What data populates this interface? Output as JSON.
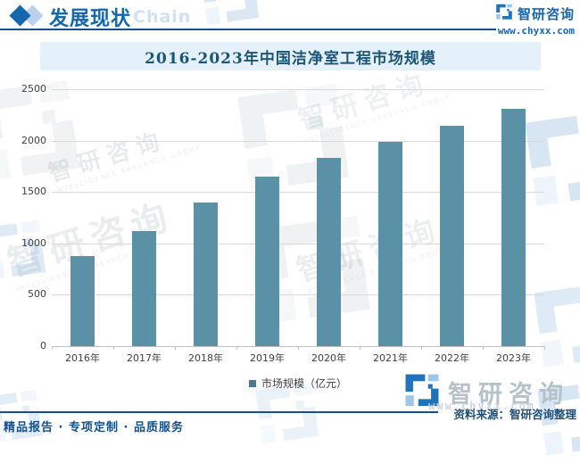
{
  "header": {
    "section_title": "发展现状",
    "section_ghost": "Chain",
    "brand_name": "智研咨询",
    "brand_url": "www.chyxx.com"
  },
  "chart_data": {
    "type": "bar",
    "title": "2016-2023年中国洁净室工程市场规模",
    "categories": [
      "2016年",
      "2017年",
      "2018年",
      "2019年",
      "2020年",
      "2021年",
      "2022年",
      "2023年"
    ],
    "series": [
      {
        "name": "市场规模（亿元）",
        "values": [
          880,
          1120,
          1400,
          1650,
          1830,
          1985,
          2145,
          2310
        ]
      }
    ],
    "unit": "亿元",
    "ylim": [
      0,
      2500
    ],
    "yticks": [
      0,
      500,
      1000,
      1500,
      2000,
      2500
    ],
    "grid": true,
    "legend_position": "bottom",
    "bar_color": "#5b91a6"
  },
  "legend": {
    "label": "市场规模（亿元）",
    "marker_color": "#4a7d93"
  },
  "footer": {
    "source": "资料来源：智研咨询整理",
    "tagline": "精品报告 · 专项定制 · 品质服务"
  },
  "watermark": {
    "cn": "智研咨询",
    "en": "INTELLIGENCE RESEARCH GROUP"
  },
  "colors": {
    "accent_blue": "#1467ad",
    "dark_blue": "#134c8f",
    "title_bg": "#e4f1fa",
    "title_text": "#1c5577",
    "bar": "#5b91a6",
    "grid": "#d9d9d9",
    "axis_text": "#404040",
    "brand_logo_blue": "#1e73bd",
    "brand_logo_light": "#9cc6ea",
    "brand_text_gray": "#b5c2ca"
  }
}
